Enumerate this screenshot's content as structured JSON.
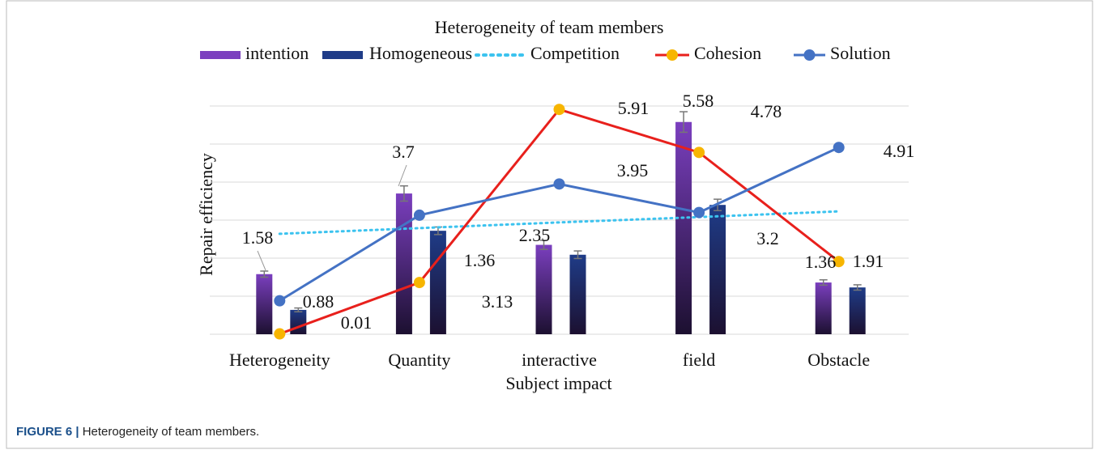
{
  "chart_data": {
    "type": "bar-line",
    "title": "Heterogeneity of team members",
    "xlabel": "Subject impact",
    "ylabel": "Repair efficiency",
    "categories": [
      "Heterogeneity",
      "Quantity",
      "interactive",
      "field",
      "Obstacle"
    ],
    "ylim": [
      0,
      6
    ],
    "grid_lines": [
      0,
      1,
      2,
      3,
      4,
      5,
      6
    ],
    "grid": true,
    "series": [
      {
        "name": "intention",
        "kind": "bar",
        "color": "#7b3fbf",
        "values": [
          1.58,
          3.7,
          2.35,
          5.58,
          1.36
        ],
        "errors": [
          0.08,
          0.2,
          0.12,
          0.27,
          0.07
        ],
        "value_labels": [
          "1.58",
          "3.7",
          "2.35",
          "5.58",
          "1.36"
        ]
      },
      {
        "name": "Homogeneous",
        "kind": "bar",
        "color": "#1f3c88",
        "values": [
          0.64,
          2.72,
          2.09,
          3.4,
          1.23
        ],
        "errors": [
          0.05,
          0.1,
          0.1,
          0.15,
          0.07
        ]
      },
      {
        "name": "Competition",
        "kind": "dotted",
        "color": "#3cc3ef",
        "values": [
          2.64,
          2.79,
          2.94,
          3.08,
          3.23
        ]
      },
      {
        "name": "Cohesion",
        "kind": "line",
        "color": "#e8201c",
        "marker_color": "#f7b500",
        "values": [
          0.01,
          1.36,
          5.91,
          4.78,
          1.91
        ],
        "value_labels": [
          "0.01",
          "1.36",
          "5.91",
          "4.78",
          "1.91"
        ]
      },
      {
        "name": "Solution",
        "kind": "line",
        "color": "#4472c4",
        "marker_color": "#4472c4",
        "values": [
          0.88,
          3.13,
          3.95,
          3.2,
          4.91
        ],
        "value_labels": [
          "0.88",
          "3.13",
          "3.95",
          "3.2",
          "4.91"
        ]
      }
    ]
  },
  "caption": {
    "label": "FIGURE 6 |",
    "text": "Heterogeneity of team members."
  }
}
